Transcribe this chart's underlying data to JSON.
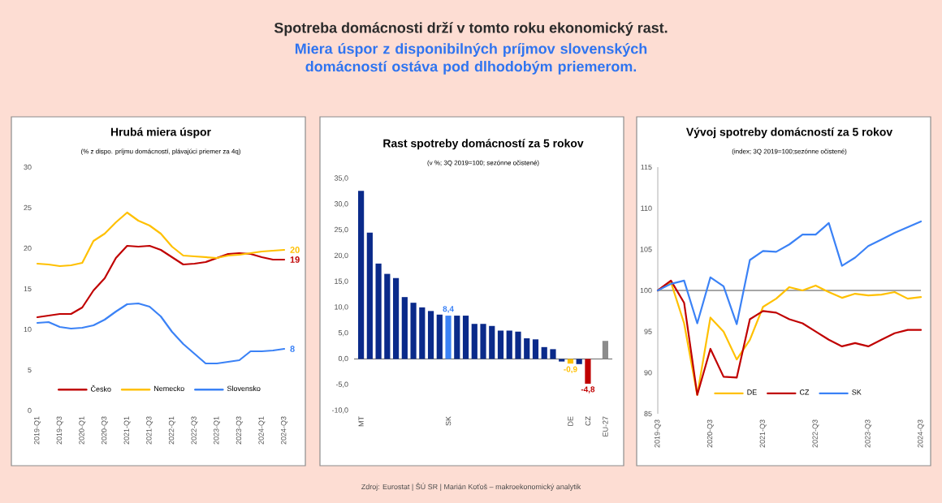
{
  "chart_data": [
    {
      "type": "other",
      "title": "Spotreba domácnosti drží v tomto roku ekonomický rast.",
      "subtitle": "Miera úspor z disponibilných príjmov slovenských domácností ostáva pod dlhodobým priemerom.",
      "annotations": [
        "Zdroj: Eurostat | ŠÚ SR | Marián Koťoš – makroekonomický analytik"
      ]
    },
    {
      "type": "line",
      "title": "Hrubá miera úspor",
      "subtitle": "(% z dispo. príjmu domácností, plávajúci priemer za 4q)",
      "categories": [
        "2019-Q1",
        null,
        "2019-Q3",
        null,
        "2020-Q1",
        null,
        "2020-Q3",
        null,
        "2021-Q1",
        null,
        "2021-Q3",
        null,
        "2022-Q1",
        null,
        "2022-Q3",
        null,
        "2023-Q1",
        null,
        "2023-Q3",
        null,
        "2024-Q1",
        null,
        "2024-Q3"
      ],
      "ylim": [
        0,
        30
      ],
      "yticks": [
        0,
        5,
        10,
        15,
        20,
        25,
        30
      ],
      "legend": "bottom",
      "series": [
        {
          "name": "Česko",
          "color": "#c00000",
          "values": [
            11.5,
            11.7,
            11.9,
            11.9,
            12.7,
            14.8,
            16.3,
            18.8,
            20.3,
            20.2,
            20.3,
            19.8,
            18.9,
            18.0,
            18.1,
            18.3,
            18.8,
            19.3,
            19.4,
            19.3,
            18.9,
            18.6,
            18.6
          ],
          "value_labels": [
            null,
            null,
            null,
            null,
            null,
            null,
            null,
            null,
            null,
            null,
            null,
            null,
            null,
            null,
            null,
            null,
            null,
            null,
            null,
            null,
            null,
            null,
            "19"
          ]
        },
        {
          "name": "Nemecko",
          "color": "#ffc000",
          "values": [
            18.1,
            18.0,
            17.8,
            17.9,
            18.2,
            20.9,
            21.8,
            23.2,
            24.4,
            23.4,
            22.8,
            21.8,
            20.2,
            19.1,
            19.0,
            18.9,
            18.8,
            19.1,
            19.2,
            19.4,
            19.6,
            19.7,
            19.8
          ],
          "value_labels": [
            null,
            null,
            null,
            null,
            null,
            null,
            null,
            null,
            null,
            null,
            null,
            null,
            null,
            null,
            null,
            null,
            null,
            null,
            null,
            null,
            null,
            null,
            "20"
          ]
        },
        {
          "name": "Slovensko",
          "color": "#3b82f6",
          "values": [
            10.8,
            10.9,
            10.3,
            10.1,
            10.2,
            10.5,
            11.2,
            12.2,
            13.1,
            13.2,
            12.8,
            11.6,
            9.7,
            8.2,
            7.0,
            5.8,
            5.8,
            6.0,
            6.2,
            7.3,
            7.3,
            7.4,
            7.6
          ],
          "value_labels": [
            null,
            null,
            null,
            null,
            null,
            null,
            null,
            null,
            null,
            null,
            null,
            null,
            null,
            null,
            null,
            null,
            null,
            null,
            null,
            null,
            null,
            null,
            "8"
          ]
        }
      ]
    },
    {
      "type": "bar",
      "title": "Rast spotreby domácností za 5 rokov",
      "subtitle": "(v %; 3Q 2019=100; sezónne očistené)",
      "categories": [
        "MT",
        null,
        null,
        null,
        null,
        null,
        null,
        null,
        null,
        null,
        "SK",
        null,
        null,
        null,
        null,
        null,
        null,
        null,
        null,
        null,
        null,
        null,
        null,
        null,
        "DE",
        null,
        "CZ",
        null,
        "EU-27"
      ],
      "values": [
        32.6,
        24.5,
        18.5,
        16.5,
        15.7,
        12.0,
        10.9,
        10.0,
        9.3,
        8.6,
        8.4,
        8.4,
        8.4,
        6.8,
        6.8,
        6.4,
        5.5,
        5.5,
        5.3,
        4.0,
        3.8,
        2.3,
        1.9,
        -0.5,
        -0.9,
        -1.0,
        -4.8,
        null,
        3.5
      ],
      "colors": [
        "#0a2a8a",
        "#0a2a8a",
        "#0a2a8a",
        "#0a2a8a",
        "#0a2a8a",
        "#0a2a8a",
        "#0a2a8a",
        "#0a2a8a",
        "#0a2a8a",
        "#0a2a8a",
        "#3b82f6",
        "#0a2a8a",
        "#0a2a8a",
        "#0a2a8a",
        "#0a2a8a",
        "#0a2a8a",
        "#0a2a8a",
        "#0a2a8a",
        "#0a2a8a",
        "#0a2a8a",
        "#0a2a8a",
        "#0a2a8a",
        "#0a2a8a",
        "#0a2a8a",
        "#ffc000",
        "#0a2a8a",
        "#c00000",
        "#8c8c8c",
        "#8c8c8c"
      ],
      "value_labels": [
        null,
        null,
        null,
        null,
        null,
        null,
        null,
        null,
        null,
        null,
        "8,4",
        null,
        null,
        null,
        null,
        null,
        null,
        null,
        null,
        null,
        null,
        null,
        null,
        null,
        "-0,9",
        null,
        "-4,8",
        null,
        null
      ],
      "ylim": [
        -10,
        35
      ],
      "yticks": [
        {
          "value": -10,
          "label": "-10,0"
        },
        {
          "value": -5,
          "label": "-5,0"
        },
        {
          "value": 0,
          "label": "0,0"
        },
        {
          "value": 5,
          "label": "5,0"
        },
        {
          "value": 10,
          "label": "10,0"
        },
        {
          "value": 15,
          "label": "15,0"
        },
        {
          "value": 20,
          "label": "20,0"
        },
        {
          "value": 25,
          "label": "25,0"
        },
        {
          "value": 30,
          "label": "30,0"
        },
        {
          "value": 35,
          "label": "35,0"
        }
      ]
    },
    {
      "type": "line",
      "title": "Vývoj spotreby domácností za 5 rokov",
      "subtitle": "(index; 3Q 2019=100;sezónne očistené)",
      "categories": [
        "2019-Q3",
        null,
        null,
        null,
        "2020-Q3",
        null,
        null,
        null,
        "2021-Q3",
        null,
        null,
        null,
        "2022-Q3",
        null,
        null,
        null,
        "2023-Q3",
        null,
        null,
        null,
        "2024-Q3"
      ],
      "ylim": [
        85,
        115
      ],
      "yticks": [
        85,
        90,
        95,
        100,
        105,
        110,
        115
      ],
      "legend": "bottom",
      "ref_lines": [
        {
          "axis": "y",
          "value": 100,
          "color": "#a6a6a6"
        }
      ],
      "series": [
        {
          "name": "DE",
          "color": "#ffc000",
          "values": [
            100,
            101,
            96,
            87.3,
            96.7,
            95,
            91.6,
            94,
            98,
            99,
            100.4,
            100,
            100.6,
            99.8,
            99.1,
            99.6,
            99.4,
            99.5,
            99.8,
            99.0,
            99.2
          ]
        },
        {
          "name": "CZ",
          "color": "#c00000",
          "values": [
            100,
            101.2,
            98.5,
            87.3,
            92.9,
            89.5,
            89.4,
            96.5,
            97.5,
            97.3,
            96.5,
            96,
            95,
            94,
            93.2,
            93.6,
            93.2,
            94,
            94.8,
            95.2,
            95.2
          ]
        },
        {
          "name": "SK",
          "color": "#3b82f6",
          "values": [
            100,
            100.8,
            101.2,
            96,
            101.6,
            100.5,
            95.9,
            103.7,
            104.8,
            104.7,
            105.6,
            106.8,
            106.8,
            108.2,
            103,
            104,
            105.4,
            106.2,
            107,
            107.7,
            108.4
          ]
        }
      ]
    }
  ]
}
